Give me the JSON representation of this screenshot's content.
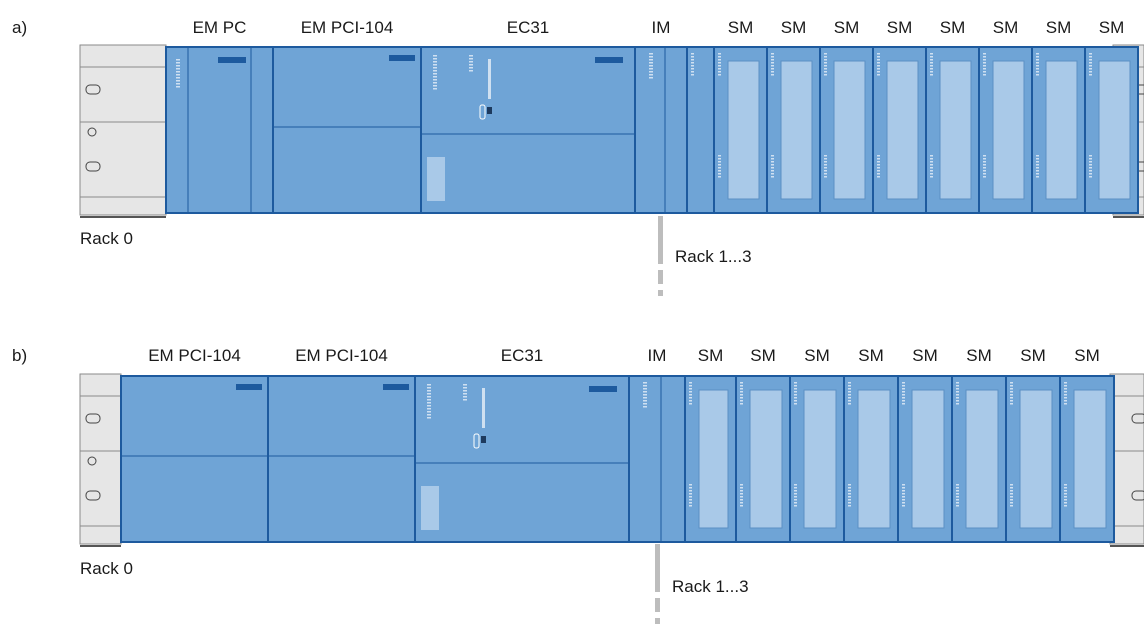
{
  "rows": [
    {
      "marker": "a)",
      "rack_label": "Rack 0",
      "ext_label": "Rack 1...3",
      "modules": [
        {
          "label": "EM PC",
          "kind": "empc"
        },
        {
          "label": "EM PCI-104",
          "kind": "pci"
        },
        {
          "label": "EC31",
          "kind": "ec31"
        },
        {
          "label": "IM",
          "kind": "im"
        },
        {
          "label": "SM",
          "kind": "sm"
        },
        {
          "label": "SM",
          "kind": "sm"
        },
        {
          "label": "SM",
          "kind": "sm"
        },
        {
          "label": "SM",
          "kind": "sm"
        },
        {
          "label": "SM",
          "kind": "sm"
        },
        {
          "label": "SM",
          "kind": "sm"
        },
        {
          "label": "SM",
          "kind": "sm"
        },
        {
          "label": "SM",
          "kind": "sm"
        }
      ]
    },
    {
      "marker": "b)",
      "rack_label": "Rack 0",
      "ext_label": "Rack 1...3",
      "modules": [
        {
          "label": "EM PCI-104",
          "kind": "pci"
        },
        {
          "label": "EM PCI-104",
          "kind": "pci"
        },
        {
          "label": "EC31",
          "kind": "ec31"
        },
        {
          "label": "IM",
          "kind": "im"
        },
        {
          "label": "SM",
          "kind": "sm"
        },
        {
          "label": "SM",
          "kind": "sm"
        },
        {
          "label": "SM",
          "kind": "sm"
        },
        {
          "label": "SM",
          "kind": "sm"
        },
        {
          "label": "SM",
          "kind": "sm"
        },
        {
          "label": "SM",
          "kind": "sm"
        },
        {
          "label": "SM",
          "kind": "sm"
        },
        {
          "label": "SM",
          "kind": "sm"
        }
      ]
    }
  ],
  "colors": {
    "module_fill": "#6fa4d6",
    "module_dark": "#1d5a9e",
    "module_light": "#a9c9e8",
    "rail": "#e6e6e6",
    "rail_edge": "#8a8a8a",
    "connector": "#bdbdbd"
  }
}
